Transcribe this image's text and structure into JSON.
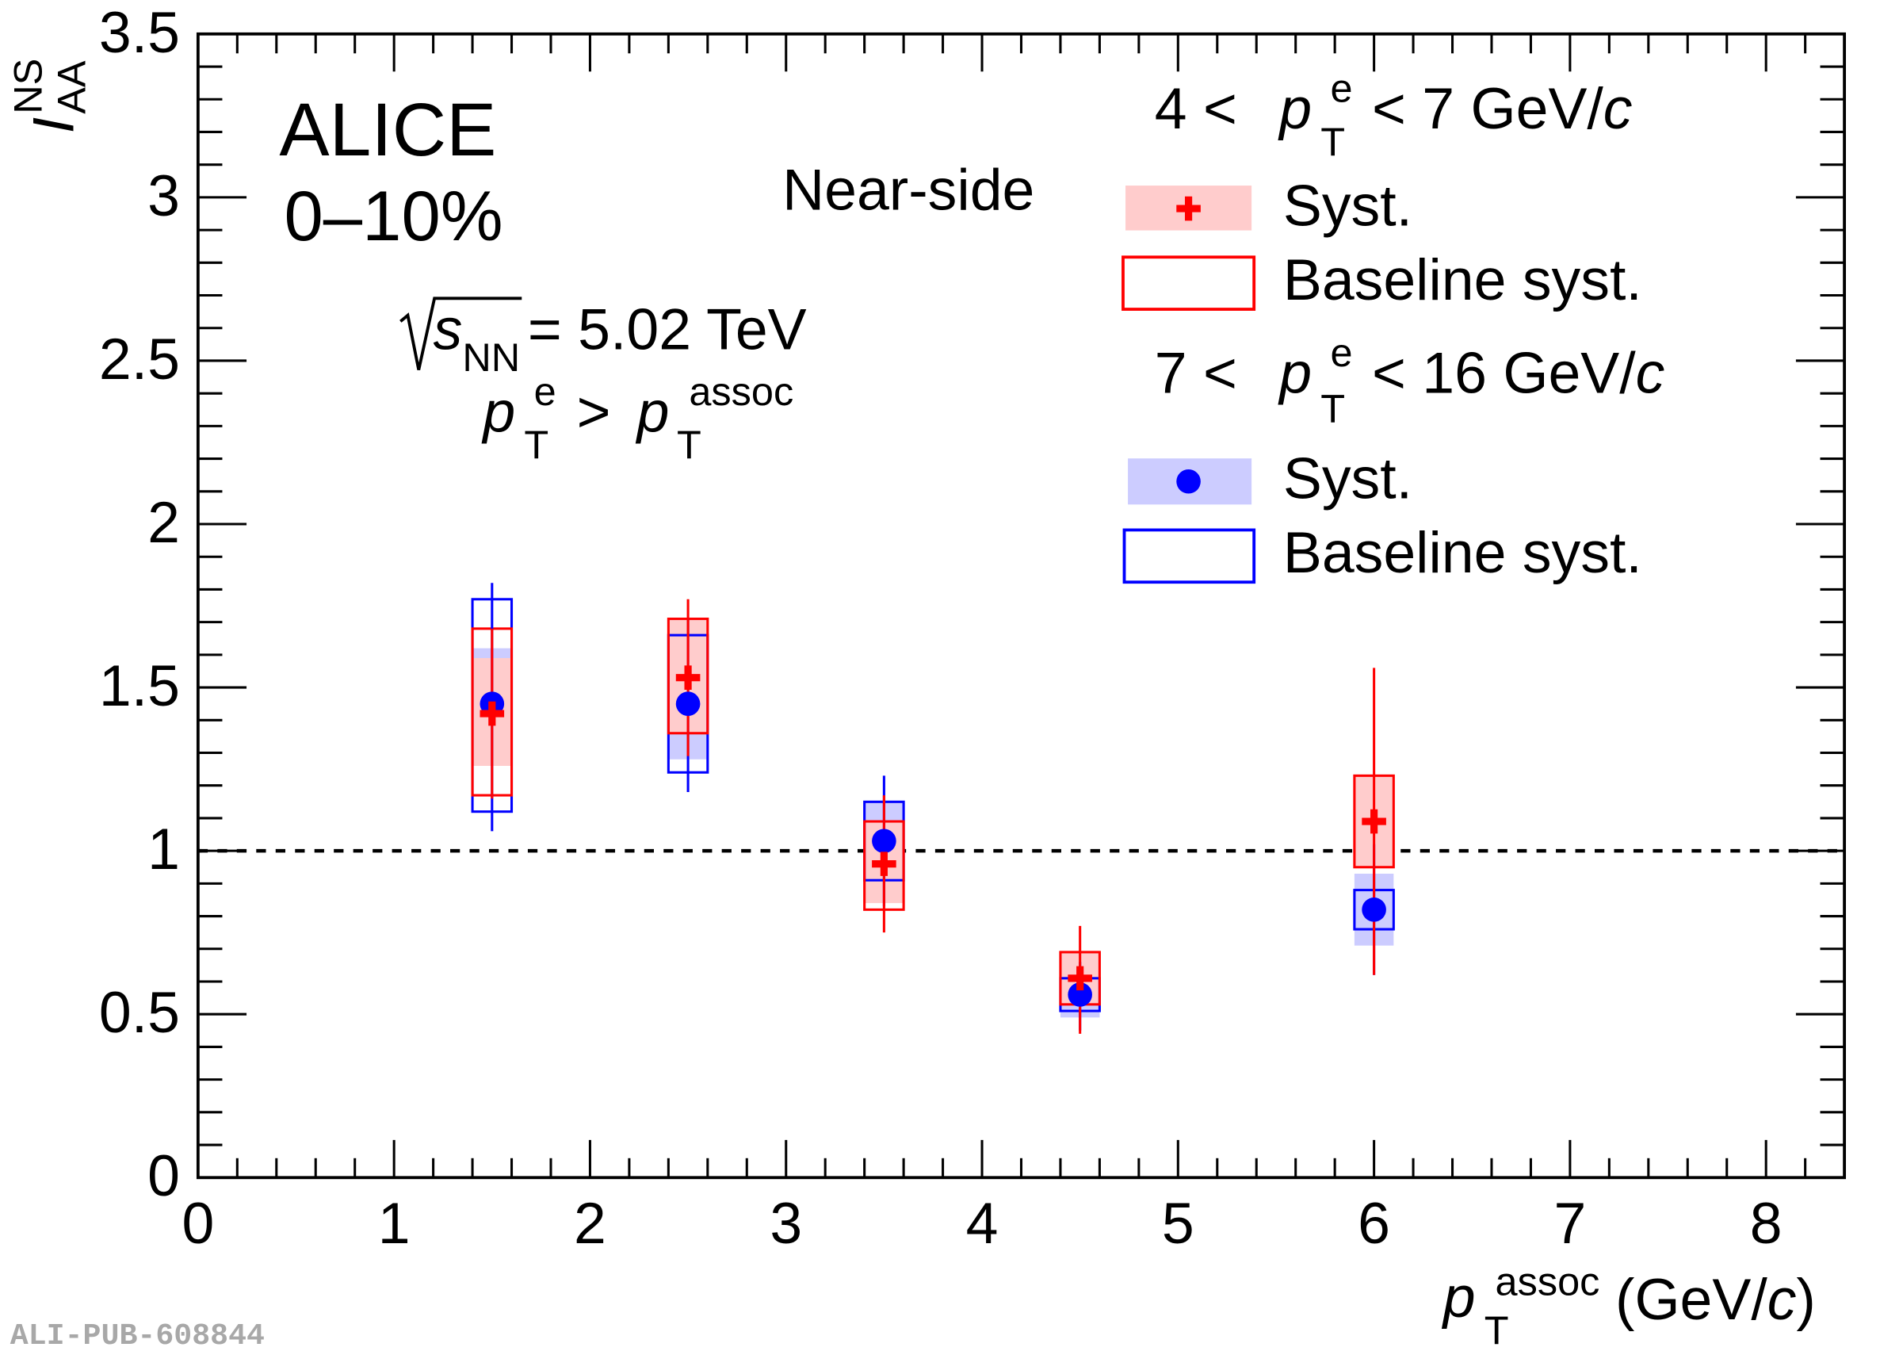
{
  "chart_data": {
    "type": "scatter",
    "xlim": [
      0,
      8.4
    ],
    "ylim": [
      0,
      3.5
    ],
    "x_ticks": [
      "0",
      "1",
      "2",
      "3",
      "4",
      "5",
      "6",
      "7",
      "8"
    ],
    "y_ticks": [
      "0",
      "0.5",
      "1",
      "1.5",
      "2",
      "2.5",
      "3",
      "3.5"
    ],
    "reference_line": {
      "y": 1,
      "style": "dashed"
    },
    "grid": false,
    "legend_placement": "top-right",
    "xlabel": {
      "p": "p",
      "sup": "assoc",
      "sub": "T",
      "unit_open": " (GeV/",
      "unit_c": "c",
      "unit_close": ")"
    },
    "ylabel": {
      "main": "I",
      "sub": "AA",
      "sup": "NS"
    },
    "series": [
      {
        "name": "4 < pTe < 7 GeV/c",
        "marker": "cross",
        "color": "#ff0000",
        "syst_fill": "#ffcccc",
        "points": [
          {
            "x": 1.5,
            "y": 1.42,
            "stat": [
              1.16,
              1.68
            ],
            "syst": [
              1.26,
              1.59
            ],
            "baseline": [
              1.17,
              1.68
            ]
          },
          {
            "x": 2.5,
            "y": 1.53,
            "stat": [
              1.29,
              1.77
            ],
            "syst": [
              1.36,
              1.71
            ],
            "baseline": [
              1.36,
              1.71
            ]
          },
          {
            "x": 3.5,
            "y": 0.96,
            "stat": [
              0.75,
              1.17
            ],
            "syst": [
              0.84,
              1.09
            ],
            "baseline": [
              0.82,
              1.09
            ]
          },
          {
            "x": 4.5,
            "y": 0.61,
            "stat": [
              0.44,
              0.77
            ],
            "syst": [
              0.53,
              0.69
            ],
            "baseline": [
              0.53,
              0.69
            ]
          },
          {
            "x": 6.0,
            "y": 1.09,
            "stat": [
              0.62,
              1.56
            ],
            "syst": [
              0.95,
              1.23
            ],
            "baseline": [
              0.95,
              1.23
            ]
          }
        ]
      },
      {
        "name": "7 < pTe < 16 GeV/c",
        "marker": "circle",
        "color": "#0000ff",
        "syst_fill": "#ccccff",
        "points": [
          {
            "x": 1.5,
            "y": 1.45,
            "stat": [
              1.06,
              1.82
            ],
            "syst": [
              1.27,
              1.62
            ],
            "baseline": [
              1.12,
              1.77
            ]
          },
          {
            "x": 2.5,
            "y": 1.45,
            "stat": [
              1.18,
              1.71
            ],
            "syst": [
              1.28,
              1.62
            ],
            "baseline": [
              1.24,
              1.66
            ]
          },
          {
            "x": 3.5,
            "y": 1.03,
            "stat": [
              0.83,
              1.23
            ],
            "syst": [
              0.91,
              1.15
            ],
            "baseline": [
              0.91,
              1.15
            ]
          },
          {
            "x": 4.5,
            "y": 0.56,
            "stat": [
              0.45,
              0.66
            ],
            "syst": [
              0.49,
              0.61
            ],
            "baseline": [
              0.51,
              0.61
            ]
          },
          {
            "x": 6.0,
            "y": 0.82,
            "stat": [
              0.62,
              1.02
            ],
            "syst": [
              0.71,
              0.93
            ],
            "baseline": [
              0.76,
              0.88
            ]
          }
        ]
      }
    ]
  },
  "annotations": {
    "experiment": "ALICE",
    "centrality": "0–10%",
    "region": "Near-side",
    "energy": {
      "sqrt": "√",
      "s": "s",
      "sub": "NN",
      "value": " = 5.02 TeV"
    },
    "condition": {
      "p1": "p",
      "sub1": "T",
      "sup1": "e",
      "gt": " > ",
      "p2": "p",
      "sub2": "T",
      "sup2": "assoc"
    }
  },
  "legend": {
    "group1": {
      "pre": "4 < ",
      "p": "p",
      "sub": "T",
      "sup": "e",
      "post": " < 7 GeV/",
      "c": "c",
      "syst": "Syst.",
      "baseline": "Baseline syst."
    },
    "group2": {
      "pre": "7 < ",
      "p": "p",
      "sub": "T",
      "sup": "e",
      "post": " < 16 GeV/",
      "c": "c",
      "syst": "Syst.",
      "baseline": "Baseline syst."
    }
  },
  "watermark": "ALI-PUB-608844"
}
